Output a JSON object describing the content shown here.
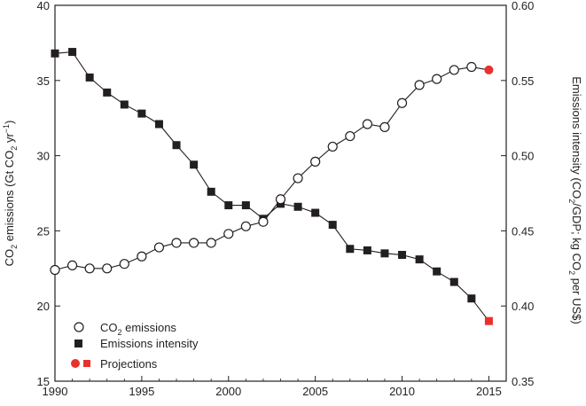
{
  "chart_data": {
    "type": "line",
    "title": "",
    "x": [
      1990,
      1991,
      1992,
      1993,
      1994,
      1995,
      1996,
      1997,
      1998,
      1999,
      2000,
      2001,
      2002,
      2003,
      2004,
      2005,
      2006,
      2007,
      2008,
      2009,
      2010,
      2011,
      2012,
      2013,
      2014
    ],
    "xlim": [
      1990,
      2016
    ],
    "xticks": [
      "1990",
      "1995",
      "2000",
      "2005",
      "2010",
      "2015"
    ],
    "ylabel": "CO₂ emissions (Gt CO₂ yr⁻¹)",
    "ylim": [
      15,
      40
    ],
    "yticks": [
      "15",
      "20",
      "25",
      "30",
      "35",
      "40"
    ],
    "y2label": "Emissions intensity (CO₂/GDP; kg CO₂ per US$)",
    "y2lim": [
      0.35,
      0.6
    ],
    "y2ticks": [
      "0.35",
      "0.40",
      "0.45",
      "0.50",
      "0.55",
      "0.60"
    ],
    "series": [
      {
        "name": "CO₂ emissions",
        "axis": "left",
        "marker": "open-circle",
        "values": [
          22.4,
          22.7,
          22.5,
          22.5,
          22.8,
          23.3,
          23.9,
          24.2,
          24.2,
          24.2,
          24.8,
          25.3,
          25.6,
          27.1,
          28.5,
          29.6,
          30.6,
          31.3,
          32.1,
          31.9,
          33.5,
          34.7,
          35.1,
          35.7,
          35.9
        ]
      },
      {
        "name": "Emissions intensity",
        "axis": "right",
        "marker": "filled-square",
        "values": [
          0.568,
          0.569,
          0.552,
          0.542,
          0.534,
          0.528,
          0.521,
          0.507,
          0.494,
          0.476,
          0.467,
          0.467,
          0.458,
          0.468,
          0.466,
          0.462,
          0.454,
          0.438,
          0.437,
          0.435,
          0.434,
          0.431,
          0.423,
          0.416,
          0.405
        ]
      }
    ],
    "projections": {
      "name": "Projections",
      "x": 2015,
      "co2_emissions": 35.7,
      "emissions_intensity": 0.39,
      "color": "#e8312b"
    },
    "legend_position": "bottom-left"
  },
  "labels": {
    "y_left_prefix": "CO",
    "y_left_mid": " emissions (Gt CO",
    "y_left_yr": " yr",
    "y_left_sup": "−1",
    "y_left_close": ")",
    "y_right_a": "Emissions intensity (CO",
    "y_right_b": "/GDP; kg CO",
    "y_right_c": " per US$)",
    "sub2": "2",
    "legend_co2_a": "CO",
    "legend_co2_b": " emissions",
    "legend_intensity": "Emissions intensity",
    "legend_projections": "Projections"
  },
  "colors": {
    "ink": "#231f20",
    "projection": "#e8312b"
  }
}
